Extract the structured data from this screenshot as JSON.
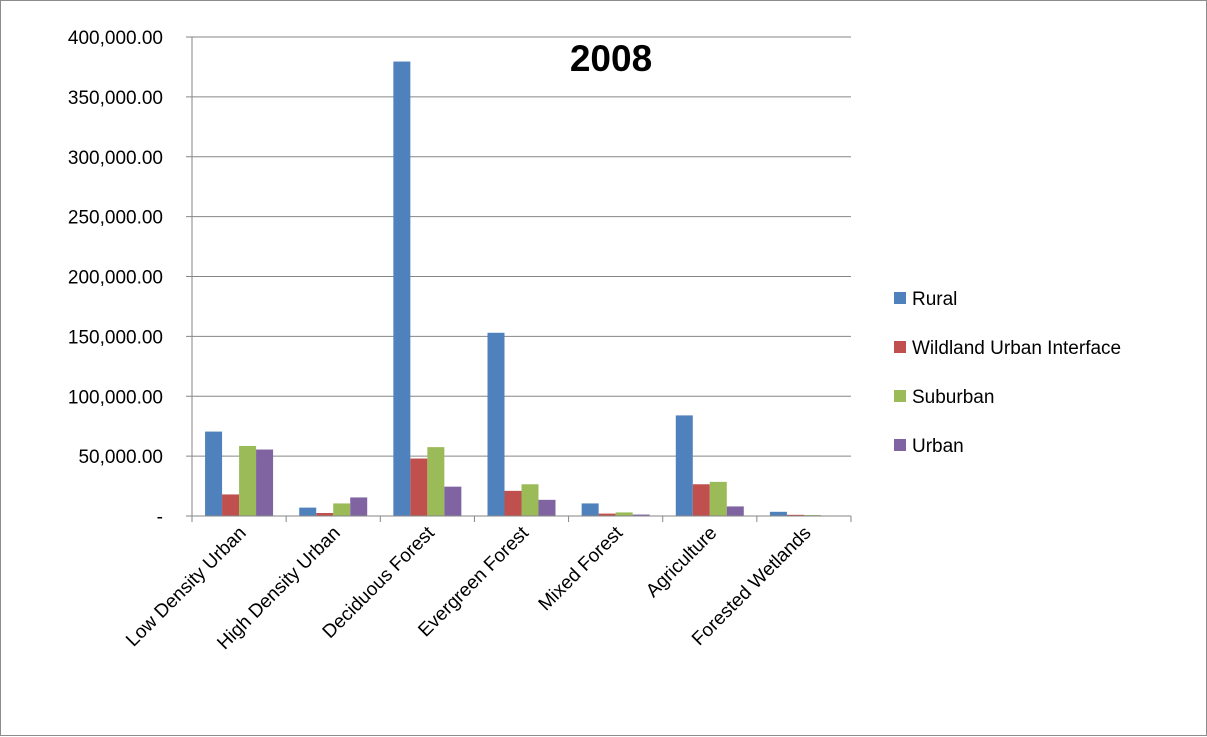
{
  "chart_data": {
    "type": "bar",
    "title": "2008",
    "categories": [
      "Low Density Urban",
      "High Density Urban",
      "Deciduous Forest",
      "Evergreen Forest",
      "Mixed Forest",
      "Agriculture",
      "Forested Wetlands"
    ],
    "series": [
      {
        "name": "Rural",
        "color": "#4f81bd",
        "values": [
          70500,
          7000,
          379500,
          153000,
          10500,
          84000,
          3500
        ]
      },
      {
        "name": "Wildland Urban Interface",
        "color": "#c0504d",
        "values": [
          18000,
          2500,
          48000,
          21000,
          2000,
          26500,
          1000
        ]
      },
      {
        "name": "Suburban",
        "color": "#9bbb59",
        "values": [
          58500,
          10500,
          57500,
          26500,
          3000,
          28500,
          800
        ]
      },
      {
        "name": "Urban",
        "color": "#8064a2",
        "values": [
          55500,
          15500,
          24500,
          13500,
          1200,
          8000,
          300
        ]
      }
    ],
    "ylim": [
      0,
      400000
    ],
    "yticks": [
      0,
      50000,
      100000,
      150000,
      200000,
      250000,
      300000,
      350000,
      400000
    ],
    "ytick_labels": [
      "-",
      "50,000.00",
      "100,000.00",
      "150,000.00",
      "200,000.00",
      "250,000.00",
      "300,000.00",
      "350,000.00",
      "400,000.00"
    ],
    "xlabel": "",
    "ylabel": "",
    "grid": true,
    "legend": "right"
  }
}
